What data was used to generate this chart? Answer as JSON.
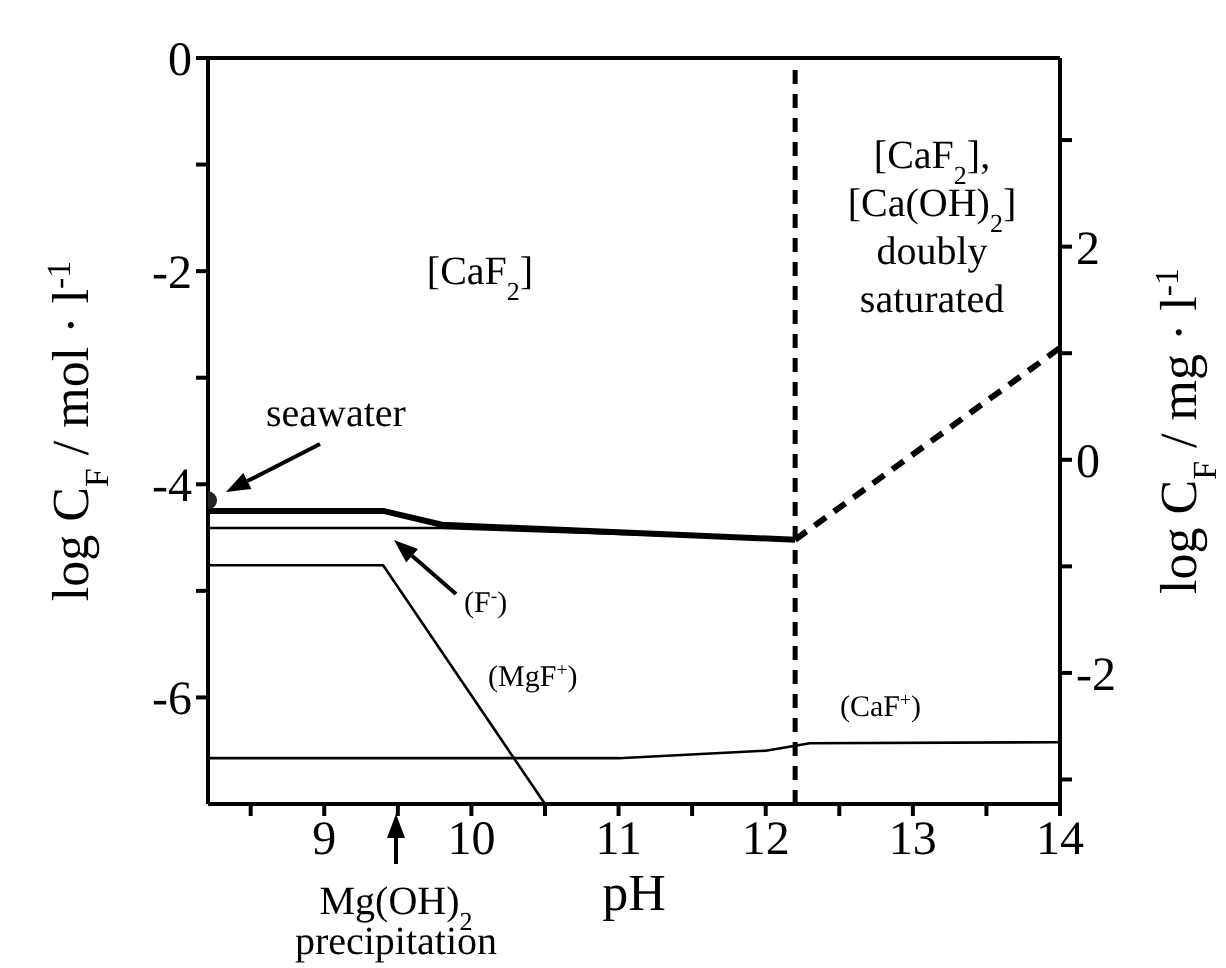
{
  "chart_data": {
    "type": "line",
    "xlabel": "pH",
    "ylabel": "log C$_{F}$ / mol · l$^{-1}$",
    "y2label": "log C$_{F}$ / mg · l$^{-1}$",
    "xlim": [
      8.21,
      14
    ],
    "xticks": [
      {
        "value": 8.5,
        "label": null
      },
      9,
      {
        "value": 9.5,
        "label": null
      },
      10,
      {
        "value": 10.5,
        "label": null
      },
      11,
      {
        "value": 11.5,
        "label": null
      },
      12,
      {
        "value": 12.5,
        "label": null
      },
      13,
      {
        "value": 13.5,
        "label": null
      },
      14
    ],
    "ylim": [
      -7,
      0
    ],
    "yticks": [
      -6,
      {
        "value": -5,
        "label": null
      },
      -4,
      {
        "value": -3,
        "label": null
      },
      -2,
      {
        "value": -1,
        "label": null
      },
      0
    ],
    "y2lim": [
      -3.23,
      3.77
    ],
    "y2ticks": [
      {
        "value": -3,
        "label": null
      },
      -2,
      {
        "value": -1,
        "label": null
      },
      0,
      {
        "value": 1,
        "label": null
      },
      2,
      {
        "value": 3,
        "label": null
      }
    ],
    "series": [
      {
        "color": "#000000",
        "x": [
          8.21,
          9.4,
          9.8,
          12.2
        ],
        "values": [
          -4.25,
          -4.25,
          -4.38,
          -4.52
        ]
      },
      {
        "color": "#000000",
        "line_style": "dashed",
        "x": [
          12.2,
          14
        ],
        "values": [
          -4.52,
          -2.72
        ]
      },
      {
        "name": "(F$^{-}$)",
        "color": "#000000",
        "x": [
          8.21,
          9.8,
          12.2
        ],
        "values": [
          -4.41,
          -4.41,
          -4.52
        ]
      },
      {
        "name": "(MgF$^{+}$)",
        "color": "#000000",
        "x": [
          8.21,
          9.4,
          10.5
        ],
        "values": [
          -4.76,
          -4.76,
          -7
        ]
      },
      {
        "name": "(CaF$^{+}$)",
        "color": "#000000",
        "x": [
          8.21,
          11,
          12,
          12.3,
          14
        ],
        "values": [
          -6.57,
          -6.57,
          -6.5,
          -6.43,
          -6.42
        ]
      },
      {
        "name": "seawater",
        "type": "scatter",
        "marker": "circle",
        "color": "#222222",
        "x": [
          8.21
        ],
        "values": [
          -4.15
        ]
      }
    ],
    "ref_lines": [
      {
        "axis": "x",
        "value": 12.2,
        "color": "#000000",
        "line_style": "dashed"
      }
    ],
    "annotations": [
      "[CaF$_{2}$]",
      "[CaF$_{2}$],\n[Ca(OH)$_{2}$]\ndoubly\nsaturated",
      "Mg(OH)$_{2}$\nprecipitation"
    ]
  }
}
